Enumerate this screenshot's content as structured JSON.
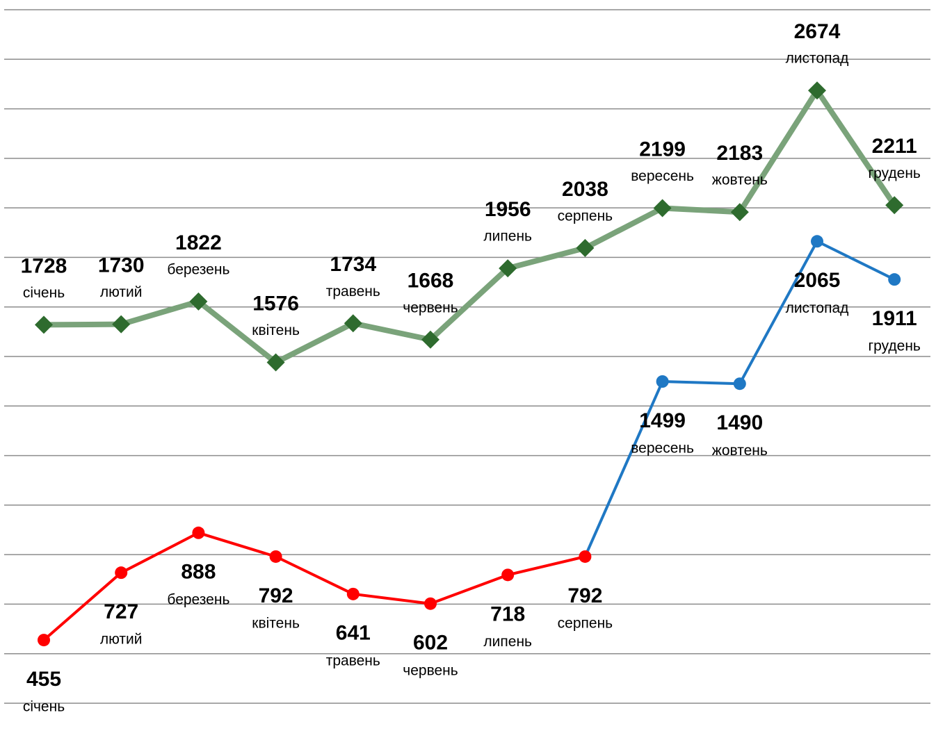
{
  "chart_data": {
    "type": "line",
    "categories": [
      "січень",
      "лютий",
      "березень",
      "квітень",
      "травень",
      "червень",
      "липень",
      "серпень",
      "вересень",
      "жовтень",
      "листопад",
      "грудень"
    ],
    "series": [
      {
        "color": "#2e6b2e",
        "line_color": "#7aa37a",
        "marker": "diamond",
        "label_side": "above",
        "values": [
          1728,
          1730,
          1822,
          1576,
          1734,
          1668,
          1956,
          2038,
          2199,
          2183,
          2674,
          2211
        ]
      },
      {
        "marker": "circle",
        "label_side": "below",
        "colors": [
          "#ff0000",
          "#ff0000",
          "#ff0000",
          "#ff0000",
          "#ff0000",
          "#ff0000",
          "#ff0000",
          "#ff0000",
          "#1f78c4",
          "#1f78c4",
          "#1f78c4",
          "#1f78c4"
        ],
        "values": [
          455,
          727,
          888,
          792,
          641,
          602,
          718,
          792,
          1499,
          1490,
          2065,
          1911
        ]
      }
    ],
    "ylim": [
      200,
      3000
    ],
    "yticks": [
      200,
      400,
      600,
      800,
      1000,
      1200,
      1400,
      1600,
      1800,
      2000,
      2200,
      2400,
      2600,
      2800,
      3000
    ],
    "grid": true
  }
}
